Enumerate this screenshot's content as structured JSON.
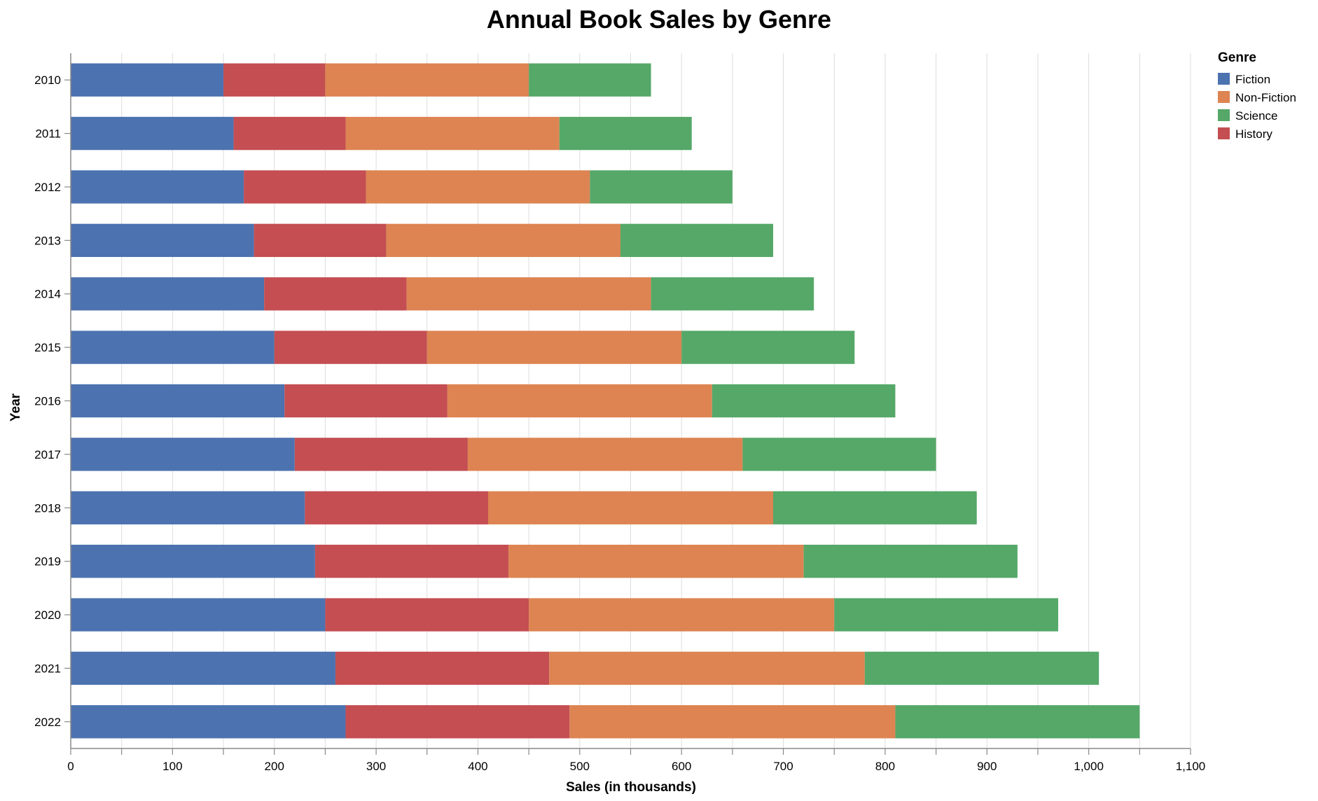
{
  "chart_data": {
    "type": "bar",
    "orientation": "horizontal",
    "stacked": true,
    "title": "Annual Book Sales by Genre",
    "xlabel": "Sales (in thousands)",
    "ylabel": "Year",
    "xlim": [
      0,
      1100
    ],
    "x_ticks": [
      "0",
      "100",
      "200",
      "300",
      "400",
      "500",
      "600",
      "700",
      "800",
      "900",
      "1,000",
      "1,100"
    ],
    "grid": true,
    "legend": {
      "title": "Genre",
      "position": "top-right",
      "entries": [
        {
          "name": "Fiction",
          "color": "#4c72b0"
        },
        {
          "name": "Non-Fiction",
          "color": "#dd8452"
        },
        {
          "name": "Science",
          "color": "#55a868"
        },
        {
          "name": "History",
          "color": "#c44e52"
        }
      ]
    },
    "stack_order": [
      "Fiction",
      "History",
      "Non-Fiction",
      "Science"
    ],
    "categories": [
      "2010",
      "2011",
      "2012",
      "2013",
      "2014",
      "2015",
      "2016",
      "2017",
      "2018",
      "2019",
      "2020",
      "2021",
      "2022"
    ],
    "series": [
      {
        "name": "Fiction",
        "color": "#4c72b0",
        "values": [
          150,
          160,
          170,
          180,
          190,
          200,
          210,
          220,
          230,
          240,
          250,
          260,
          270
        ]
      },
      {
        "name": "History",
        "color": "#c44e52",
        "values": [
          100,
          110,
          120,
          130,
          140,
          150,
          160,
          170,
          180,
          190,
          200,
          210,
          220
        ]
      },
      {
        "name": "Non-Fiction",
        "color": "#dd8452",
        "values": [
          200,
          210,
          220,
          230,
          240,
          250,
          260,
          270,
          280,
          290,
          300,
          310,
          320
        ]
      },
      {
        "name": "Science",
        "color": "#55a868",
        "values": [
          120,
          130,
          140,
          150,
          160,
          170,
          180,
          190,
          200,
          210,
          220,
          230,
          240
        ]
      }
    ]
  }
}
